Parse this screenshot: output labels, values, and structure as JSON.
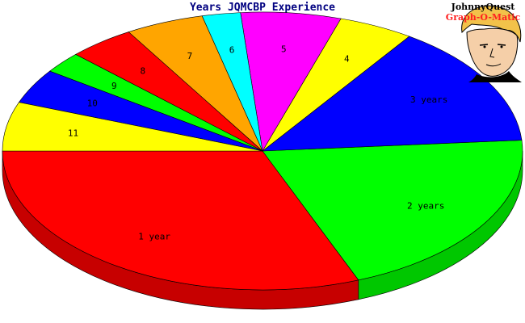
{
  "chart_data": {
    "type": "pie",
    "title": "Years JQMCBP Experience",
    "labels": [
      "1 year",
      "2 years",
      "3 years",
      "4",
      "5",
      "6",
      "7",
      "8",
      "9",
      "10",
      "11"
    ],
    "values": [
      29.9,
      19.5,
      13.7,
      4.5,
      6.0,
      2.3,
      4.7,
      4.0,
      2.4,
      3.9,
      5.5
    ],
    "colors": [
      "#ff0000",
      "#00ff00",
      "#0000ff",
      "#ffff00",
      "#ff00ff",
      "#00ffff",
      "#ffa500",
      "#ff0000",
      "#00ff00",
      "#0000ff",
      "#ffff00"
    ],
    "legend": "none",
    "style": "3d"
  },
  "logo": {
    "line1": "JohnnyQuest",
    "line2": "Graph-O-Matic"
  }
}
